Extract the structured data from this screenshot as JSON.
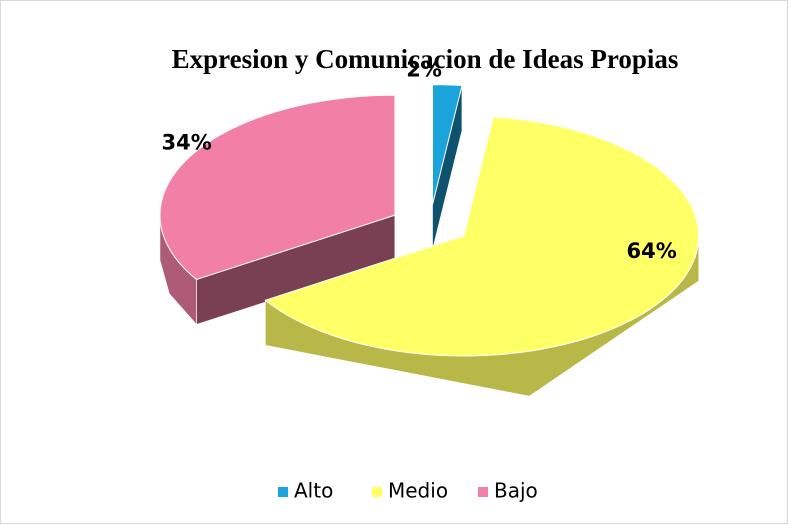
{
  "chart_data": {
    "type": "pie",
    "title": "Expresion y Comunicacion de Ideas Propias",
    "categories": [
      "Alto",
      "Medio",
      "Bajo"
    ],
    "values": [
      2,
      64,
      34
    ],
    "value_labels": [
      "2%",
      "64%",
      "34%"
    ],
    "colors": [
      "#1ba3dc",
      "#ffff66",
      "#f27fa5"
    ],
    "legend": "bottom"
  }
}
